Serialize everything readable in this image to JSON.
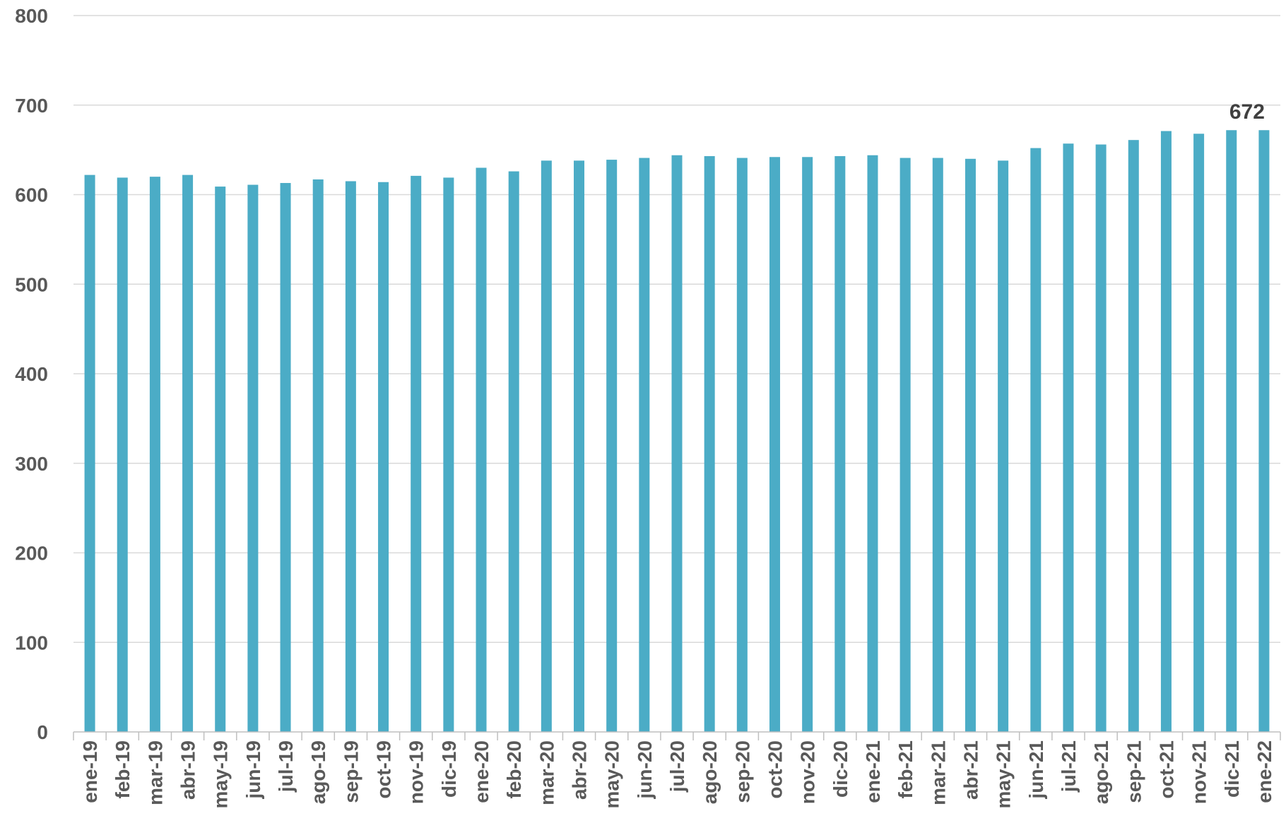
{
  "chart_data": {
    "type": "bar",
    "categories": [
      "ene-19",
      "feb-19",
      "mar-19",
      "abr-19",
      "may-19",
      "jun-19",
      "jul-19",
      "ago-19",
      "sep-19",
      "oct-19",
      "nov-19",
      "dic-19",
      "ene-20",
      "feb-20",
      "mar-20",
      "abr-20",
      "may-20",
      "jun-20",
      "jul-20",
      "ago-20",
      "sep-20",
      "oct-20",
      "nov-20",
      "dic-20",
      "ene-21",
      "feb-21",
      "mar-21",
      "abr-21",
      "may-21",
      "jun-21",
      "jul-21",
      "ago-21",
      "sep-21",
      "oct-21",
      "nov-21",
      "dic-21",
      "ene-22"
    ],
    "values": [
      622,
      619,
      620,
      622,
      609,
      611,
      613,
      617,
      615,
      614,
      621,
      619,
      630,
      626,
      638,
      638,
      639,
      641,
      644,
      643,
      641,
      642,
      642,
      643,
      644,
      641,
      641,
      640,
      638,
      652,
      657,
      656,
      661,
      671,
      668,
      672,
      672
    ],
    "title": "",
    "xlabel": "",
    "ylabel": "",
    "ylim": [
      0,
      800
    ],
    "yticks": [
      0,
      100,
      200,
      300,
      400,
      500,
      600,
      700,
      800
    ],
    "grid": true,
    "bar_color": "#4bacc6",
    "data_labels": [
      {
        "category": "ene-22",
        "text": "672"
      }
    ]
  }
}
